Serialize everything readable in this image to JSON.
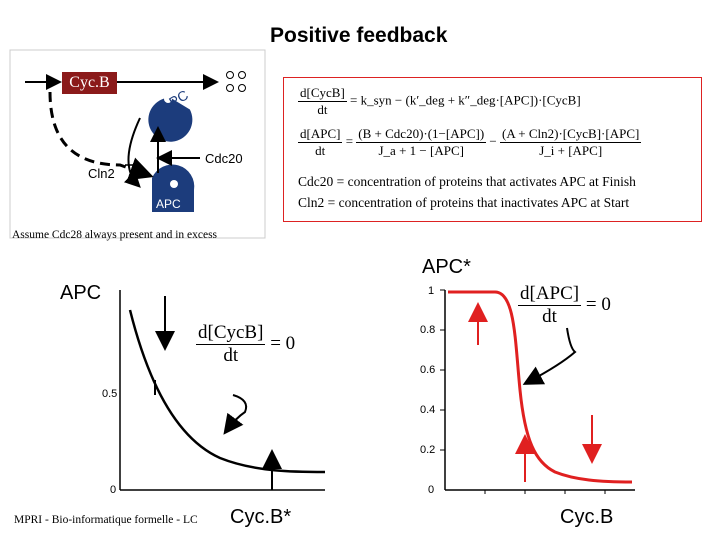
{
  "title": "Positive feedback",
  "network": {
    "cycb_label": "Cyc.B",
    "apc_active_label": "APC",
    "cdc20_label": "Cdc20",
    "cln2_label": "Cln2",
    "apc_inactive_label": "APC",
    "assumption": "Assume Cdc28 always present and in excess"
  },
  "equations": {
    "eq1_lhs_num": "d[CycB]",
    "eq1_lhs_den": "dt",
    "eq1_rhs": "= k_syn − (k′_deg + k″_deg·[APC])·[CycB]",
    "eq2_lhs_num": "d[APC]",
    "eq2_lhs_den": "dt",
    "eq2_t1_num": "(B + Cdc20)·(1−[APC])",
    "eq2_t1_den": "J_a + 1 − [APC]",
    "eq2_t2_num": "(A + Cln2)·[CycB]·[APC]",
    "eq2_t2_den": "J_i + [APC]",
    "def_cdc20": "Cdc20 = concentration of proteins that activates APC at Finish",
    "def_cln2": "Cln2 = concentration of proteins that inactivates APC at Start"
  },
  "left_plot": {
    "ylabel": "APC",
    "xlabel": "Cyc.B*",
    "tick_mid": "0.5",
    "tick_zero": "0",
    "nullcline_num": "d[CycB]",
    "nullcline_den": "dt",
    "nullcline_eq": "= 0"
  },
  "right_plot": {
    "ylabel": "APC*",
    "xlabel": "Cyc.B",
    "yticks": [
      "1",
      "0.8",
      "0.6",
      "0.4",
      "0.2",
      "0"
    ],
    "nullcline_num": "d[APC]",
    "nullcline_den": "dt",
    "nullcline_eq": "= 0"
  },
  "footer": "MPRI - Bio-informatique formelle - LC",
  "colors": {
    "cycb_box": "#8b1a1a",
    "cycb_text": "#ffffff",
    "apc_nullcline": "#e02020",
    "arrow_red": "#e02020",
    "equation_border": "#dd2222"
  }
}
